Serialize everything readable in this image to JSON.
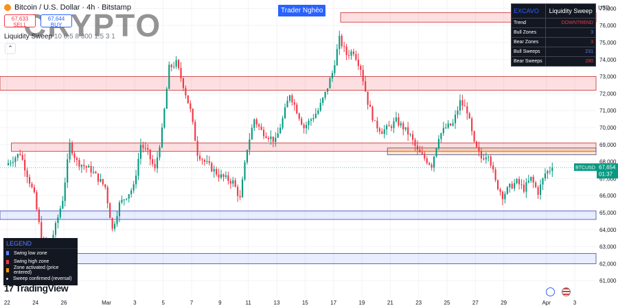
{
  "header": {
    "symbol_title": "Bitcoin / U.S. Dollar · 4h · Bitstamp",
    "sell_price": "67,633",
    "sell_label": "SELL",
    "buy_price": "67,644",
    "buy_label": "BUY",
    "watermark": "CRYPTO",
    "indicator_name": "Liquidity Sweep",
    "indicator_params": "10 0.5 8 300 1.5 3 1"
  },
  "brand_label": "Trader Nghèo",
  "currency": "USD",
  "info_table": {
    "title_left": "EXCAVO",
    "title_right": "Liquidity Sweep",
    "rows": [
      {
        "label": "Trend",
        "value": "DOWNTREND",
        "color": "#f23645"
      },
      {
        "label": "Bull Zones",
        "value": "3",
        "color": "#5b7fff"
      },
      {
        "label": "Bear Zones",
        "value": "3",
        "color": "#f23645"
      },
      {
        "label": "Bull Sweeps",
        "value": "231",
        "color": "#5b7fff"
      },
      {
        "label": "Bear Sweeps",
        "value": "280",
        "color": "#f23645"
      }
    ]
  },
  "legend": {
    "title": "LEGEND",
    "items": [
      {
        "label": "Swing low zone",
        "color": "#5b7fff"
      },
      {
        "label": "Swing high zone",
        "color": "#f23645"
      },
      {
        "label": "Zone activated (price entered)",
        "color": "#ff9800"
      },
      {
        "label": "Sweep confirmed (reversal)",
        "color": "#d1d4dc"
      }
    ]
  },
  "logo_text": "TradingView",
  "colors": {
    "up": "#089981",
    "down": "#f23645",
    "bull_zone": "#5b7fff",
    "bear_zone": "#f23645",
    "active_zone": "#ff9800"
  },
  "chart_data": {
    "type": "candlestick",
    "symbol": "BTCUSD",
    "timeframe": "4h",
    "ylim": [
      60000,
      77500
    ],
    "y_ticks": [
      61000,
      62000,
      63000,
      64000,
      65000,
      66000,
      67000,
      68000,
      69000,
      70000,
      71000,
      72000,
      73000,
      74000,
      75000,
      76000,
      77000
    ],
    "x_range_days": [
      -0.5,
      41.5
    ],
    "x_ticks": [
      {
        "label": "22",
        "day": 0
      },
      {
        "label": "24",
        "day": 2
      },
      {
        "label": "26",
        "day": 4
      },
      {
        "label": "Mar",
        "day": 7
      },
      {
        "label": "3",
        "day": 9
      },
      {
        "label": "5",
        "day": 11
      },
      {
        "label": "7",
        "day": 13
      },
      {
        "label": "9",
        "day": 15
      },
      {
        "label": "11",
        "day": 17
      },
      {
        "label": "13",
        "day": 19
      },
      {
        "label": "15",
        "day": 21
      },
      {
        "label": "17",
        "day": 23
      },
      {
        "label": "19",
        "day": 25
      },
      {
        "label": "21",
        "day": 27
      },
      {
        "label": "23",
        "day": 29
      },
      {
        "label": "25",
        "day": 31
      },
      {
        "label": "27",
        "day": 33
      },
      {
        "label": "29",
        "day": 35
      },
      {
        "label": "Apr",
        "day": 38
      },
      {
        "label": "3",
        "day": 40
      }
    ],
    "last_price": 67654,
    "last_price_label": "67,654",
    "countdown": "01:37",
    "path": [
      [
        0,
        67800
      ],
      [
        1,
        68500
      ],
      [
        2,
        66000
      ],
      [
        2.5,
        63500
      ],
      [
        3,
        62800
      ],
      [
        3.5,
        64200
      ],
      [
        4,
        65800
      ],
      [
        4.5,
        69000
      ],
      [
        5,
        68000
      ],
      [
        6,
        67500
      ],
      [
        7,
        66500
      ],
      [
        7.5,
        64000
      ],
      [
        8,
        65500
      ],
      [
        9,
        66500
      ],
      [
        9.5,
        69000
      ],
      [
        10,
        68500
      ],
      [
        10.5,
        67500
      ],
      [
        11,
        69800
      ],
      [
        11.5,
        73500
      ],
      [
        12,
        73800
      ],
      [
        12.5,
        72500
      ],
      [
        13,
        71000
      ],
      [
        13.5,
        68500
      ],
      [
        14,
        68000
      ],
      [
        15,
        67200
      ],
      [
        16,
        66800
      ],
      [
        16.5,
        65800
      ],
      [
        17,
        68800
      ],
      [
        17.5,
        70500
      ],
      [
        18,
        69800
      ],
      [
        19,
        69200
      ],
      [
        19.5,
        70500
      ],
      [
        20,
        72000
      ],
      [
        20.5,
        71000
      ],
      [
        21,
        70000
      ],
      [
        22,
        71000
      ],
      [
        22.5,
        72000
      ],
      [
        23,
        73200
      ],
      [
        23.5,
        75200
      ],
      [
        24,
        74300
      ],
      [
        24.5,
        74500
      ],
      [
        25,
        73500
      ],
      [
        25.5,
        71500
      ],
      [
        26,
        70200
      ],
      [
        26.5,
        69800
      ],
      [
        27,
        70000
      ],
      [
        27.5,
        70400
      ],
      [
        28,
        70000
      ],
      [
        28.5,
        69500
      ],
      [
        29,
        68600
      ],
      [
        29.5,
        68200
      ],
      [
        30,
        67800
      ],
      [
        30.5,
        69500
      ],
      [
        31,
        70000
      ],
      [
        31.5,
        70200
      ],
      [
        32,
        71500
      ],
      [
        32.5,
        71000
      ],
      [
        33,
        69000
      ],
      [
        33.5,
        68200
      ],
      [
        34,
        68500
      ],
      [
        34.5,
        66800
      ],
      [
        35,
        66000
      ],
      [
        35.5,
        66500
      ],
      [
        36,
        66800
      ],
      [
        36.5,
        66400
      ],
      [
        37,
        67000
      ],
      [
        37.5,
        66200
      ],
      [
        38,
        67300
      ],
      [
        38.5,
        67654
      ]
    ],
    "zones": [
      {
        "kind": "bear",
        "low": 76200,
        "high": 76750,
        "from_day": 23.5,
        "to_day": 41.5
      },
      {
        "kind": "bear",
        "low": 72200,
        "high": 73000,
        "from_day": -0.5,
        "to_day": 41.5
      },
      {
        "kind": "bear",
        "low": 68600,
        "high": 69100,
        "from_day": 0.3,
        "to_day": 41.5
      },
      {
        "kind": "active",
        "low": 68400,
        "high": 68800,
        "from_day": 26.8,
        "to_day": 41.5
      },
      {
        "kind": "bull",
        "low": 64600,
        "high": 65100,
        "from_day": -0.5,
        "to_day": 41.5
      },
      {
        "kind": "bull",
        "low": 62000,
        "high": 62600,
        "from_day": 4,
        "to_day": 41.5
      }
    ]
  }
}
